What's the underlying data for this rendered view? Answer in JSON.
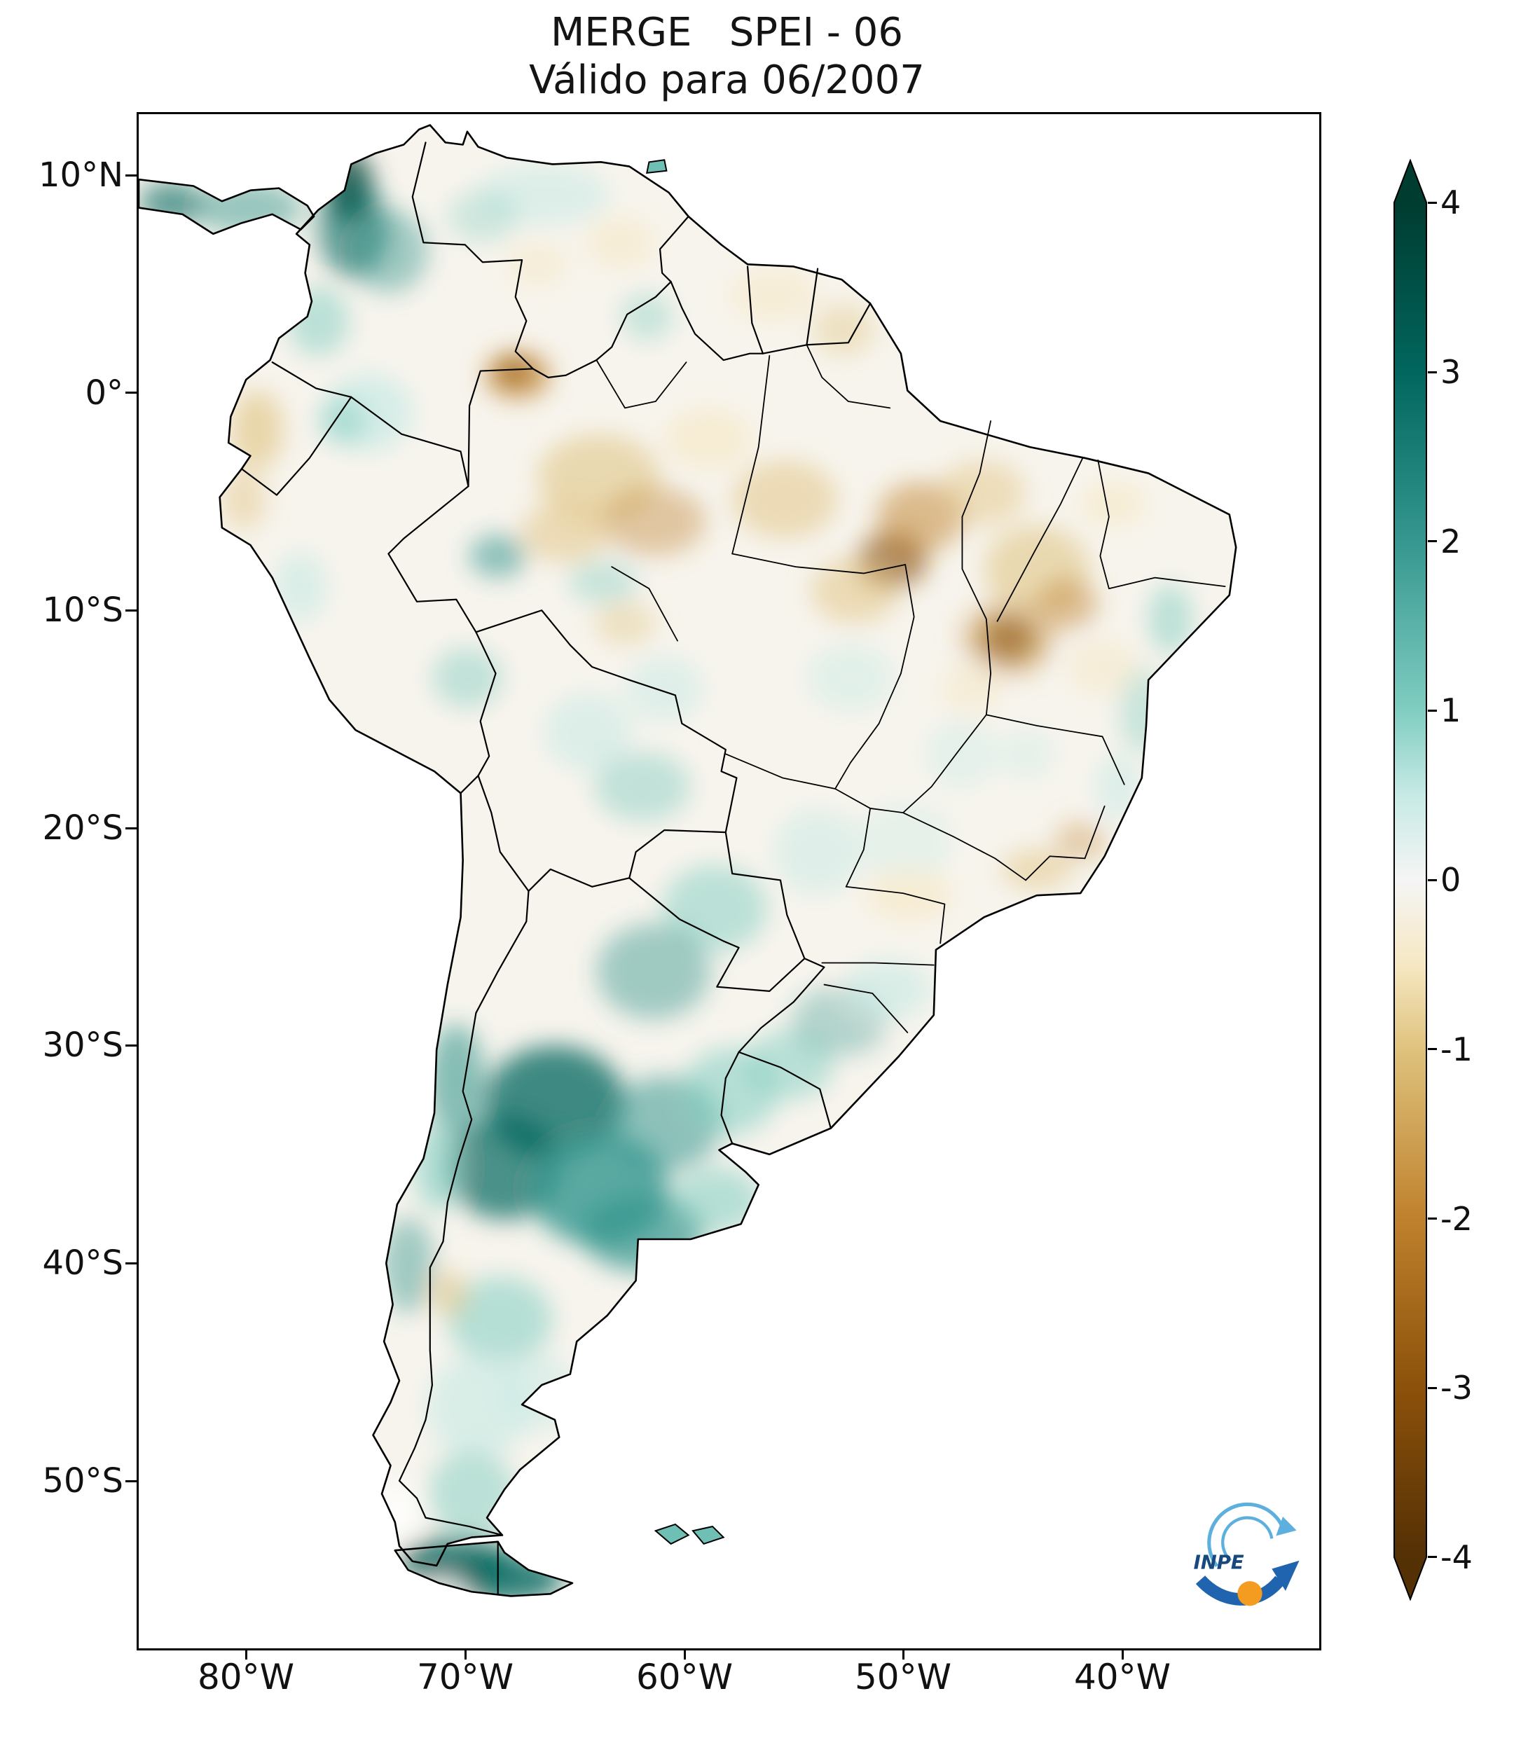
{
  "title": "MERGE   SPEI - 06",
  "subtitle": "Válido para 06/2007",
  "axes": {
    "y_ticks": [
      {
        "label": "10°N"
      },
      {
        "label": "0°"
      },
      {
        "label": "10°S"
      },
      {
        "label": "20°S"
      },
      {
        "label": "30°S"
      },
      {
        "label": "40°S"
      },
      {
        "label": "50°S"
      }
    ],
    "x_ticks": [
      {
        "label": "80°W"
      },
      {
        "label": "70°W"
      },
      {
        "label": "60°W"
      },
      {
        "label": "50°W"
      },
      {
        "label": "40°W"
      }
    ]
  },
  "colorbar": {
    "max": 4,
    "min": -4,
    "colormap": "BrBG",
    "ticks": [
      {
        "label": "4"
      },
      {
        "label": "3"
      },
      {
        "label": "2"
      },
      {
        "label": "1"
      },
      {
        "label": "0"
      },
      {
        "label": "-1"
      },
      {
        "label": "-2"
      },
      {
        "label": "-3"
      },
      {
        "label": "-4"
      }
    ],
    "stops": [
      {
        "value": 4,
        "color": "#003c30"
      },
      {
        "value": 3,
        "color": "#01665e"
      },
      {
        "value": 2,
        "color": "#35978f"
      },
      {
        "value": 1,
        "color": "#80cdc1"
      },
      {
        "value": 0.5,
        "color": "#c7eae5"
      },
      {
        "value": 0,
        "color": "#f5f5f5"
      },
      {
        "value": -0.5,
        "color": "#f6e8c3"
      },
      {
        "value": -1,
        "color": "#dfc27d"
      },
      {
        "value": -2,
        "color": "#bf812d"
      },
      {
        "value": -3,
        "color": "#8c510a"
      },
      {
        "value": -4,
        "color": "#543005"
      }
    ]
  },
  "logo": {
    "text": "INPE"
  },
  "chart_data": {
    "type": "heatmap",
    "title": "MERGE SPEI - 06",
    "valid_for": "06/2007",
    "variable": "SPEI drought index (6-month accumulation)",
    "region": "South America",
    "colormap": "BrBG",
    "value_range": [
      -4,
      4
    ],
    "regions": [
      {
        "area": "Caribbean coast of NW Colombia",
        "spei": 3.5
      },
      {
        "area": "Central-western Argentina (Cuyo / La Pampa)",
        "spei": 2.5
      },
      {
        "area": "Buenos Aires province",
        "spei": 2
      },
      {
        "area": "Central Chile and Andes 30S-38S",
        "spei": 2
      },
      {
        "area": "Patagonia",
        "spei": 1
      },
      {
        "area": "Southern tip / Tierra del Fuego",
        "spei": 3
      },
      {
        "area": "Paraguay and NE Argentina",
        "spei": 1
      },
      {
        "area": "Upper Rio Negro (NW Brazilian Amazon)",
        "spei": -2
      },
      {
        "area": "Central Amazon",
        "spei": -1
      },
      {
        "area": "SE Pará / Tocantins",
        "spei": -2.5
      },
      {
        "area": "Western Bahia / southern Maranhão-Piauí",
        "spei": -2
      },
      {
        "area": "Coastal Ecuador and far-northern Peru",
        "spei": -1
      },
      {
        "area": "Most of central and eastern Brazil",
        "spei": 0
      }
    ]
  }
}
